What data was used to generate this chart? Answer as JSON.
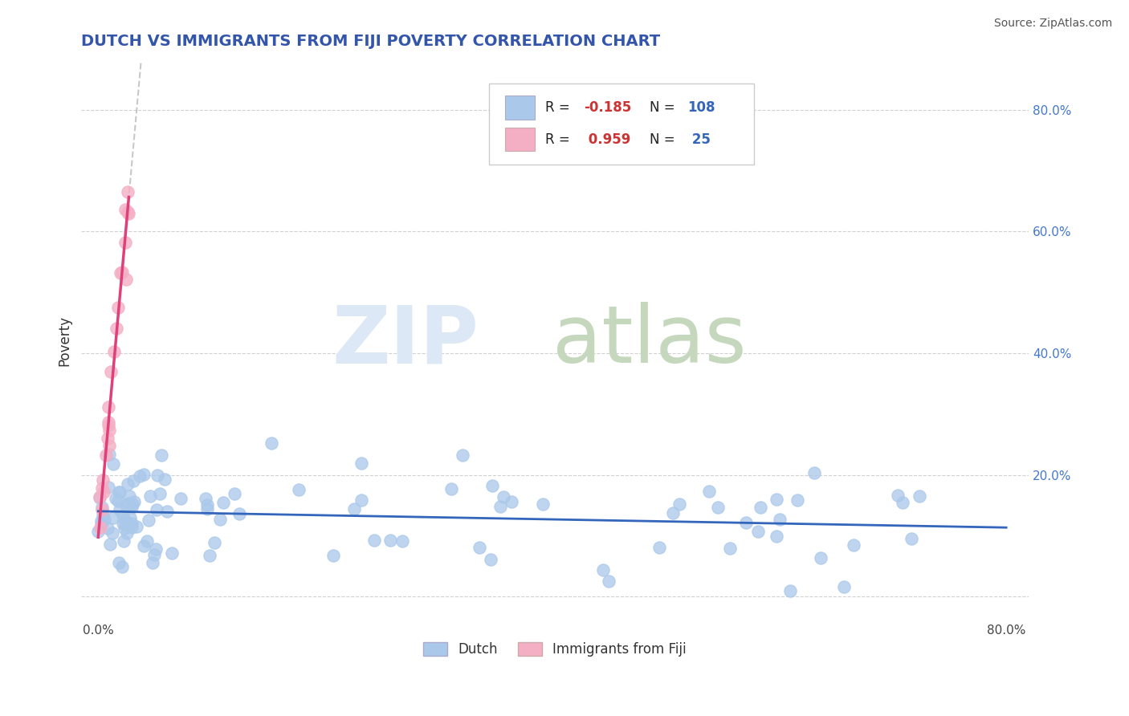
{
  "title": "DUTCH VS IMMIGRANTS FROM FIJI POVERTY CORRELATION CHART",
  "source": "Source: ZipAtlas.com",
  "ylabel": "Poverty",
  "legend_dutch_R": "-0.185",
  "legend_dutch_N": "108",
  "legend_fiji_R": "0.959",
  "legend_fiji_N": "25",
  "legend_dutch_label": "Dutch",
  "legend_fiji_label": "Immigrants from Fiji",
  "dutch_color": "#aac8ea",
  "fiji_color": "#f4afc4",
  "dutch_line_color": "#3366bb",
  "fiji_line_color": "#e0407a",
  "gray_dash_color": "#bbbbbb",
  "background_color": "#ffffff",
  "grid_color": "#cccccc",
  "title_color": "#3355aa",
  "source_color": "#555555",
  "legend_text_color": "#222222",
  "legend_R_color": "#cc3333",
  "legend_N_color": "#3366bb",
  "watermark_zip_color": "#dce8f5",
  "watermark_atlas_color": "#c5d8be",
  "xlim": [
    -0.015,
    0.82
  ],
  "ylim": [
    -0.04,
    0.88
  ],
  "ytick_positions": [
    0.0,
    0.2,
    0.4,
    0.6,
    0.8
  ],
  "ytick_labels": [
    "",
    "20.0%",
    "40.0%",
    "60.0%",
    "80.0%"
  ],
  "xtick_positions": [
    0.0,
    0.8
  ],
  "xtick_labels": [
    "0.0%",
    "80.0%"
  ],
  "marker_size": 120
}
